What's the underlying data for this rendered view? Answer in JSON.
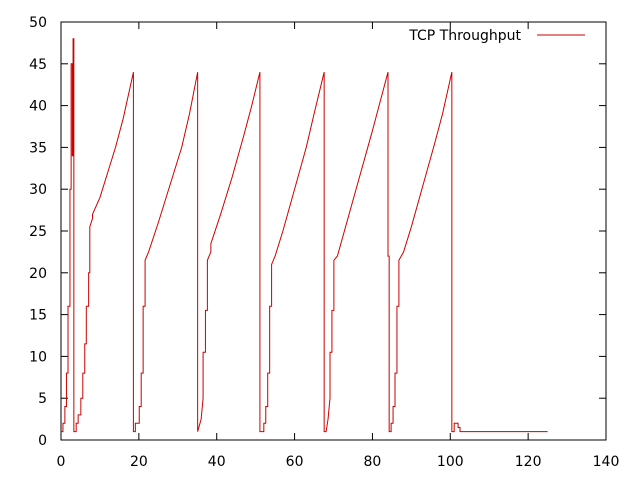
{
  "chart_data": {
    "type": "line",
    "title": "",
    "xlabel": "",
    "ylabel": "",
    "xlim": [
      0,
      140
    ],
    "ylim": [
      0,
      50
    ],
    "x_ticks": [
      0,
      20,
      40,
      60,
      80,
      100,
      120,
      140
    ],
    "y_ticks": [
      0,
      5,
      10,
      15,
      20,
      25,
      30,
      35,
      40,
      45,
      50
    ],
    "grid": false,
    "legend_position": "top-right",
    "colors": {
      "series": "#cc0000",
      "axis": "#000000",
      "background": "#ffffff"
    },
    "series": [
      {
        "name": "TCP Throughput",
        "points": [
          [
            0,
            1
          ],
          [
            0.5,
            1
          ],
          [
            0.5,
            2
          ],
          [
            1,
            2
          ],
          [
            1,
            4
          ],
          [
            1.4,
            4
          ],
          [
            1.4,
            8
          ],
          [
            1.8,
            8
          ],
          [
            1.8,
            16
          ],
          [
            2.3,
            16
          ],
          [
            2.3,
            30
          ],
          [
            2.6,
            30
          ],
          [
            2.6,
            45
          ],
          [
            2.9,
            45
          ],
          [
            2.9,
            34
          ],
          [
            3.1,
            34
          ],
          [
            3.1,
            48
          ],
          [
            3.3,
            48
          ],
          [
            3.3,
            1
          ],
          [
            3.9,
            1
          ],
          [
            3.9,
            2
          ],
          [
            4.4,
            2
          ],
          [
            4.4,
            3
          ],
          [
            5.1,
            3
          ],
          [
            5.1,
            5
          ],
          [
            5.6,
            5
          ],
          [
            5.6,
            8
          ],
          [
            6.1,
            8
          ],
          [
            6.1,
            11.5
          ],
          [
            6.5,
            11.5
          ],
          [
            6.5,
            16
          ],
          [
            7.1,
            16
          ],
          [
            7.1,
            20
          ],
          [
            7.4,
            20
          ],
          [
            7.4,
            25.5
          ],
          [
            8.1,
            26.5
          ],
          [
            8.1,
            27
          ],
          [
            10,
            29
          ],
          [
            12,
            32
          ],
          [
            14,
            35
          ],
          [
            16,
            38.5
          ],
          [
            18.6,
            44
          ],
          [
            18.6,
            1
          ],
          [
            19.1,
            1
          ],
          [
            19.1,
            2
          ],
          [
            20.1,
            2
          ],
          [
            20.1,
            4
          ],
          [
            20.6,
            4
          ],
          [
            20.6,
            8
          ],
          [
            21.1,
            8
          ],
          [
            21.1,
            16
          ],
          [
            21.6,
            16
          ],
          [
            21.6,
            21.5
          ],
          [
            22.5,
            22.5
          ],
          [
            25,
            26
          ],
          [
            28,
            30.5
          ],
          [
            31,
            35
          ],
          [
            33,
            39
          ],
          [
            35.1,
            44
          ],
          [
            35.1,
            1
          ],
          [
            36,
            2.5
          ],
          [
            36.5,
            5
          ],
          [
            36.5,
            10.5
          ],
          [
            37.1,
            10.5
          ],
          [
            37.1,
            15.5
          ],
          [
            37.6,
            15.5
          ],
          [
            37.6,
            21.5
          ],
          [
            38.5,
            22.5
          ],
          [
            38.5,
            23.5
          ],
          [
            41,
            27
          ],
          [
            44,
            31.5
          ],
          [
            47,
            36.5
          ],
          [
            49,
            40
          ],
          [
            51.1,
            44
          ],
          [
            51.1,
            1
          ],
          [
            52.1,
            1
          ],
          [
            52.1,
            2
          ],
          [
            52.6,
            2
          ],
          [
            52.6,
            4
          ],
          [
            53.1,
            4
          ],
          [
            53.1,
            8
          ],
          [
            53.6,
            8
          ],
          [
            53.6,
            16
          ],
          [
            54.1,
            16
          ],
          [
            54.1,
            21
          ],
          [
            55,
            22
          ],
          [
            57,
            25
          ],
          [
            60,
            30
          ],
          [
            63,
            35
          ],
          [
            65,
            39
          ],
          [
            67.6,
            44
          ],
          [
            67.6,
            1
          ],
          [
            68.1,
            1
          ],
          [
            68.6,
            2.5
          ],
          [
            69.1,
            5
          ],
          [
            69.1,
            10.5
          ],
          [
            69.6,
            10.5
          ],
          [
            69.6,
            15.5
          ],
          [
            70.1,
            15.5
          ],
          [
            70.1,
            21.5
          ],
          [
            71,
            22
          ],
          [
            74,
            27
          ],
          [
            77,
            32
          ],
          [
            80,
            37
          ],
          [
            82,
            40.5
          ],
          [
            84,
            44
          ],
          [
            84,
            22
          ],
          [
            84.3,
            22
          ],
          [
            84.3,
            1
          ],
          [
            84.8,
            1
          ],
          [
            84.8,
            2
          ],
          [
            85.3,
            2
          ],
          [
            85.3,
            4
          ],
          [
            85.8,
            4
          ],
          [
            85.8,
            8
          ],
          [
            86.3,
            8
          ],
          [
            86.3,
            16
          ],
          [
            86.8,
            16
          ],
          [
            86.8,
            21.5
          ],
          [
            88,
            22.5
          ],
          [
            90,
            25.5
          ],
          [
            93,
            30.5
          ],
          [
            96,
            35.5
          ],
          [
            98,
            39
          ],
          [
            100.4,
            44
          ],
          [
            100.4,
            1
          ],
          [
            101,
            1
          ],
          [
            101,
            2
          ],
          [
            102,
            2
          ],
          [
            102,
            1.5
          ],
          [
            102.5,
            1.5
          ],
          [
            102.5,
            1
          ],
          [
            125,
            1
          ]
        ]
      }
    ]
  }
}
